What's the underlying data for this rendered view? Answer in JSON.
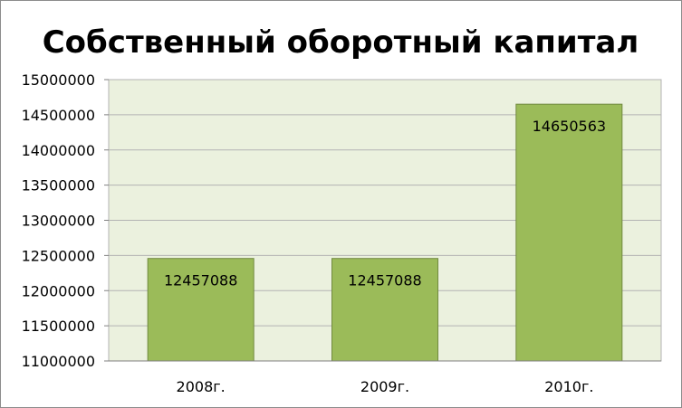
{
  "chart_data": {
    "type": "bar",
    "title": "Собственный оборотный капитал",
    "categories": [
      "2008г.",
      "2009г.",
      "2010г."
    ],
    "values": [
      12457088,
      12457088,
      14650563
    ],
    "data_labels": [
      "12457088",
      "12457088",
      "14650563"
    ],
    "ylim": [
      11000000,
      15000000
    ],
    "ytick_step": 500000,
    "ytick_labels": [
      "11000000",
      "11500000",
      "12000000",
      "12500000",
      "13000000",
      "13500000",
      "14000000",
      "14500000",
      "15000000"
    ],
    "grid": true,
    "legend": "none",
    "colors": {
      "bar_fill": "#9bbb59",
      "bar_stroke": "#71893f",
      "plot_background": "#ebf1de",
      "gridline": "#b3b3b3",
      "text": "#000000"
    }
  }
}
